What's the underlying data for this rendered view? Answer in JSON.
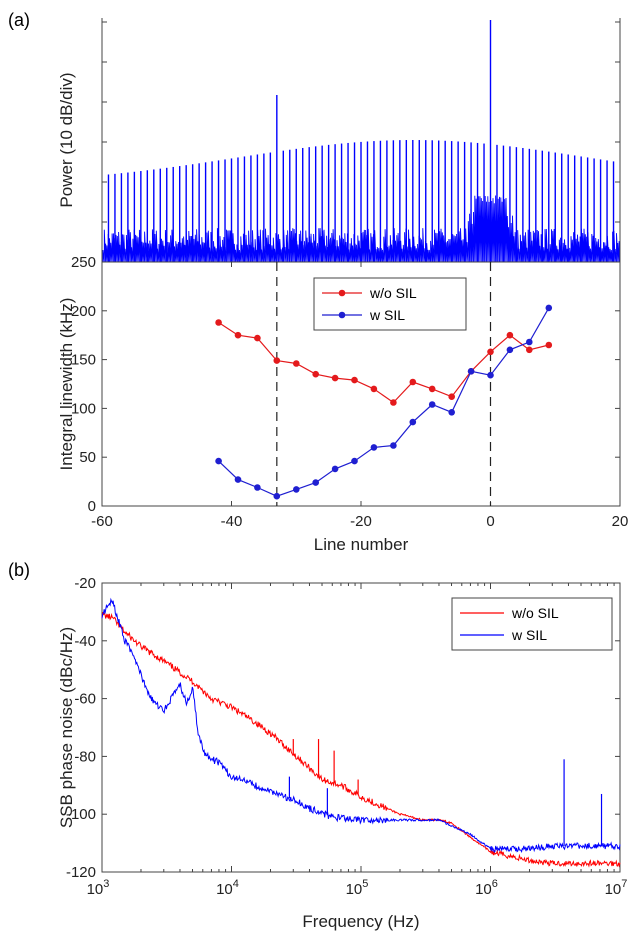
{
  "figure": {
    "panel_a": "(a)",
    "panel_b": "(b)"
  },
  "chart_data": [
    {
      "type": "line",
      "subplot": "a-top",
      "ylabel": "Power (10 dB/div)",
      "xlim": [
        -60,
        20
      ],
      "series_color": "#0000ff",
      "description_values": {
        "comb_lines_x": [
          -60,
          -59,
          -58,
          -57,
          -56,
          -55,
          -54,
          -53,
          -52,
          -51,
          -50,
          -49,
          -48,
          -47,
          -46,
          -45,
          -44,
          -43,
          -42,
          -41,
          -40,
          -39,
          -38,
          -37,
          -36,
          -35,
          -34,
          -33,
          -32,
          -31,
          -30,
          -29,
          -28,
          -27,
          -26,
          -25,
          -24,
          -23,
          -22,
          -21,
          -20,
          -19,
          -18,
          -17,
          -16,
          -15,
          -14,
          -13,
          -12,
          -11,
          -10,
          -9,
          -8,
          -7,
          -6,
          -5,
          -4,
          -3,
          -2,
          -1,
          0,
          1,
          2,
          3,
          4,
          5,
          6,
          7,
          8,
          9,
          10,
          11,
          12,
          13,
          14,
          15,
          16,
          17,
          18,
          19,
          20
        ],
        "pump_line_x": 0,
        "strong_line_x": -33
      }
    },
    {
      "type": "line",
      "subplot": "a-bottom",
      "xlabel": "Line number",
      "ylabel": "Integral linewidth (kHz)",
      "xlim": [
        -60,
        20
      ],
      "ylim": [
        0,
        250
      ],
      "xticks": [
        "-60",
        "-40",
        "-20",
        "0",
        "20"
      ],
      "yticks": [
        "0",
        "50",
        "100",
        "150",
        "200",
        "250"
      ],
      "vlines": [
        -33,
        0
      ],
      "legend_position": "top-center",
      "series": [
        {
          "name": "w/o SIL",
          "color": "#e41a1c",
          "x": [
            -42,
            -39,
            -36,
            -33,
            -30,
            -27,
            -24,
            -21,
            -18,
            -15,
            -12,
            -9,
            -6,
            -3,
            0,
            3,
            6,
            9
          ],
          "y": [
            188,
            175,
            172,
            149,
            146,
            135,
            131,
            129,
            120,
            106,
            127,
            120,
            112,
            138,
            158,
            175,
            160,
            165
          ]
        },
        {
          "name": "w SIL",
          "color": "#1f1fd1",
          "x": [
            -42,
            -39,
            -36,
            -33,
            -30,
            -27,
            -24,
            -21,
            -18,
            -15,
            -12,
            -9,
            -6,
            -3,
            0,
            3,
            6,
            9
          ],
          "y": [
            46,
            27,
            19,
            10,
            17,
            24,
            38,
            46,
            60,
            62,
            86,
            104,
            96,
            138,
            134,
            160,
            168,
            203
          ]
        }
      ]
    },
    {
      "type": "line",
      "subplot": "b",
      "xlabel": "Frequency (Hz)",
      "ylabel": "SSB phase noise (dBc/Hz)",
      "xscale": "log",
      "xlim": [
        1000,
        10000000
      ],
      "ylim": [
        -120,
        -20
      ],
      "xticks": [
        {
          "base": "10",
          "exp": "3"
        },
        {
          "base": "10",
          "exp": "4"
        },
        {
          "base": "10",
          "exp": "5"
        },
        {
          "base": "10",
          "exp": "6"
        },
        {
          "base": "10",
          "exp": "7"
        }
      ],
      "yticks": [
        "-120",
        "-100",
        "-80",
        "-60",
        "-40",
        "-20"
      ],
      "legend_position": "top-right",
      "series": [
        {
          "name": "w/o SIL",
          "color": "#ff0000",
          "x": [
            1000,
            1200,
            1500,
            2000,
            3000,
            5000,
            7000,
            10000,
            15000,
            20000,
            30000,
            40000,
            50000,
            70000,
            100000,
            200000,
            300000,
            400000,
            500000,
            700000,
            1000000,
            2000000,
            3000000,
            5000000,
            10000000
          ],
          "y": [
            -31,
            -32,
            -37,
            -42,
            -47,
            -54,
            -60,
            -63,
            -68,
            -72,
            -79,
            -84,
            -88,
            -90,
            -94,
            -100,
            -102,
            -102,
            -103,
            -108,
            -113,
            -116,
            -117,
            -117,
            -117
          ]
        },
        {
          "name": "w SIL",
          "color": "#0000ff",
          "x": [
            1000,
            1200,
            1500,
            1800,
            2200,
            2600,
            3000,
            4000,
            4500,
            5000,
            5500,
            6000,
            7000,
            8000,
            10000,
            15000,
            20000,
            30000,
            40000,
            60000,
            100000,
            200000,
            300000,
            400000,
            500000,
            700000,
            1000000,
            2000000,
            3000000,
            5000000,
            10000000
          ],
          "y": [
            -31,
            -26,
            -40,
            -46,
            -57,
            -62,
            -64,
            -55,
            -62,
            -56,
            -71,
            -78,
            -81,
            -82,
            -87,
            -90,
            -92,
            -95,
            -98,
            -101,
            -102,
            -102,
            -102,
            -102,
            -104,
            -107,
            -112,
            -112,
            -111,
            -111,
            -111
          ]
        }
      ],
      "spikes": [
        {
          "series": "w/o SIL",
          "x": [
            30000,
            47000,
            62000,
            95000
          ],
          "y": [
            -74,
            -74,
            -78,
            -88
          ]
        },
        {
          "series": "w SIL",
          "x": [
            28000,
            55000,
            3700000,
            7200000
          ],
          "y": [
            -87,
            -91,
            -81,
            -93
          ]
        }
      ]
    }
  ]
}
